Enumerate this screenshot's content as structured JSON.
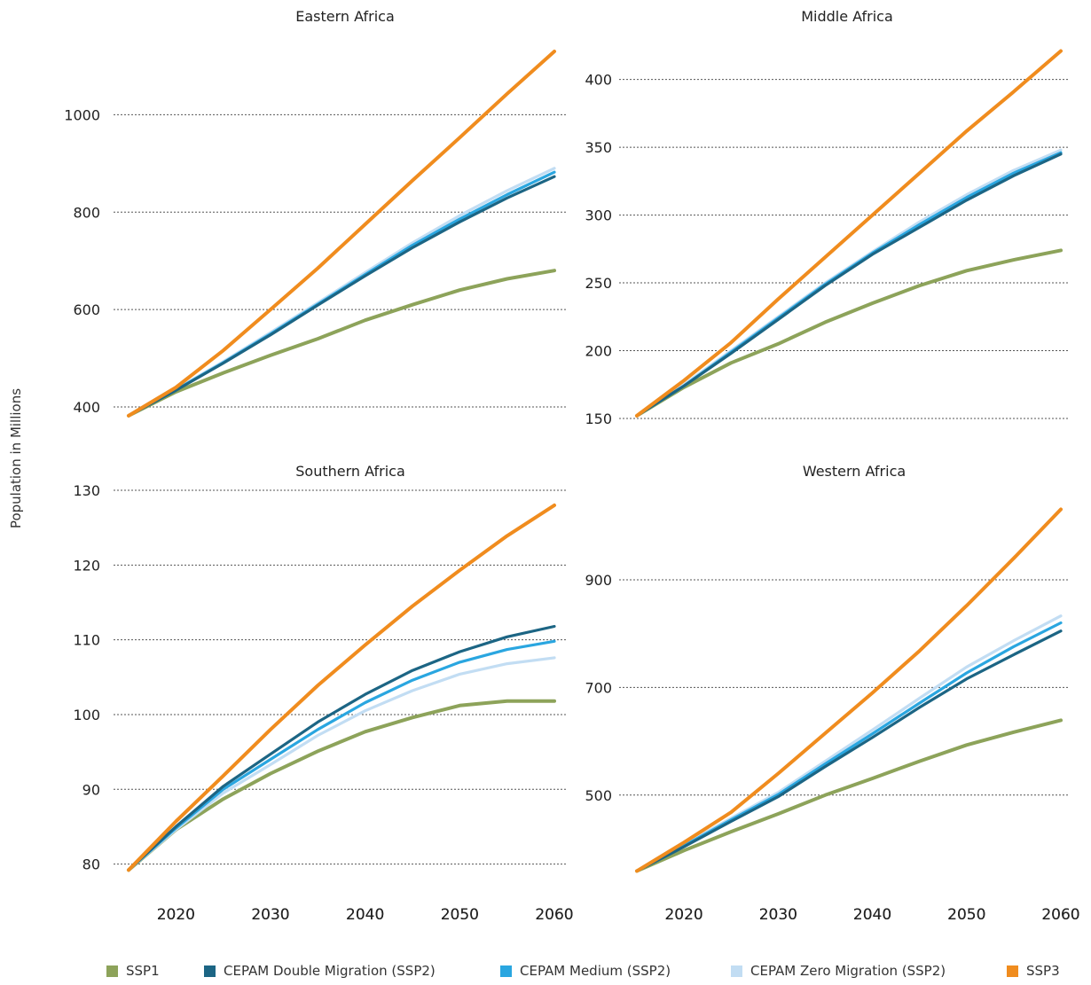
{
  "ylabel": "Population in Millions",
  "legend": [
    {
      "label": "SSP1",
      "color": "#8da35a"
    },
    {
      "label": "CEPAM Double Migration (SSP2)",
      "color": "#1c6584"
    },
    {
      "label": "CEPAM Medium (SSP2)",
      "color": "#2aa6e0"
    },
    {
      "label": "CEPAM Zero Migration (SSP2)",
      "color": "#c2ddf3"
    },
    {
      "label": "SSP3",
      "color": "#f08c1e"
    }
  ],
  "chart_data": [
    {
      "type": "line",
      "title": "Eastern Africa",
      "x": [
        2015,
        2020,
        2025,
        2030,
        2035,
        2040,
        2045,
        2050,
        2055,
        2060
      ],
      "xticks": [
        "2020",
        "2030",
        "2040",
        "2050",
        "2060"
      ],
      "yticks": [
        "400",
        "600",
        "800",
        "1000"
      ],
      "ylim": [
        380,
        1130
      ],
      "grid": true,
      "series": [
        {
          "name": "CEPAM Zero Migration (SSP2)",
          "values": [
            382,
            436,
            493,
            553,
            614,
            676,
            737,
            793,
            844,
            890
          ]
        },
        {
          "name": "CEPAM Medium (SSP2)",
          "values": [
            382,
            435,
            491,
            550,
            611,
            672,
            732,
            786,
            836,
            882
          ]
        },
        {
          "name": "CEPAM Double Migration (SSP2)",
          "values": [
            382,
            434,
            490,
            548,
            609,
            669,
            727,
            780,
            829,
            873
          ]
        },
        {
          "name": "SSP1",
          "values": [
            382,
            431,
            470,
            506,
            540,
            578,
            610,
            640,
            663,
            680
          ]
        },
        {
          "name": "SSP3",
          "values": [
            382,
            440,
            516,
            600,
            685,
            775,
            865,
            953,
            1043,
            1130
          ]
        }
      ]
    },
    {
      "type": "line",
      "title": "Middle Africa",
      "x": [
        2015,
        2020,
        2025,
        2030,
        2035,
        2040,
        2045,
        2050,
        2055,
        2060
      ],
      "xticks": [
        "2020",
        "2030",
        "2040",
        "2050",
        "2060"
      ],
      "yticks": [
        "150",
        "200",
        "250",
        "300",
        "350",
        "400"
      ],
      "ylim": [
        150,
        422
      ],
      "grid": true,
      "series": [
        {
          "name": "CEPAM Zero Migration (SSP2)",
          "values": [
            152,
            175,
            200,
            225,
            250,
            273,
            295,
            315,
            333,
            348
          ]
        },
        {
          "name": "CEPAM Medium (SSP2)",
          "values": [
            152,
            174,
            199,
            224,
            249,
            272,
            293,
            313,
            331,
            346
          ]
        },
        {
          "name": "CEPAM Double Migration (SSP2)",
          "values": [
            152,
            174,
            198,
            223,
            248,
            271,
            291,
            311,
            329,
            345
          ]
        },
        {
          "name": "SSP1",
          "values": [
            152,
            173,
            191,
            205,
            221,
            235,
            248,
            259,
            267,
            274
          ]
        },
        {
          "name": "SSP3",
          "values": [
            152,
            178,
            206,
            238,
            269,
            300,
            331,
            362,
            391,
            421
          ]
        }
      ]
    },
    {
      "type": "line",
      "title": "Southern Africa",
      "x": [
        2015,
        2020,
        2025,
        2030,
        2035,
        2040,
        2045,
        2050,
        2055,
        2060
      ],
      "xticks": [
        "2020",
        "2030",
        "2040",
        "2050",
        "2060"
      ],
      "yticks": [
        "80",
        "90",
        "100",
        "110",
        "120",
        "130"
      ],
      "ylim": [
        79,
        130
      ],
      "grid": true,
      "series": [
        {
          "name": "CEPAM Zero Migration (SSP2)",
          "values": [
            79.2,
            84.6,
            89.5,
            93.3,
            97.2,
            100.5,
            103.2,
            105.4,
            106.8,
            107.6
          ]
        },
        {
          "name": "CEPAM Medium (SSP2)",
          "values": [
            79.2,
            84.8,
            90.0,
            94.0,
            98.0,
            101.6,
            104.6,
            107.0,
            108.7,
            109.8
          ]
        },
        {
          "name": "CEPAM Double Migration (SSP2)",
          "values": [
            79.2,
            85.0,
            90.4,
            94.7,
            99.0,
            102.7,
            105.9,
            108.4,
            110.4,
            111.8
          ]
        },
        {
          "name": "SSP1",
          "values": [
            79.2,
            84.6,
            88.7,
            92.1,
            95.1,
            97.7,
            99.6,
            101.2,
            101.8,
            101.8
          ]
        },
        {
          "name": "SSP3",
          "values": [
            79.2,
            85.7,
            91.8,
            98.0,
            103.9,
            109.3,
            114.5,
            119.3,
            123.9,
            128.0
          ]
        }
      ]
    },
    {
      "type": "line",
      "title": "Western Africa",
      "x": [
        2015,
        2020,
        2025,
        2030,
        2035,
        2040,
        2045,
        2050,
        2055,
        2060
      ],
      "xticks": [
        "2020",
        "2030",
        "2040",
        "2050",
        "2060"
      ],
      "yticks": [
        "500",
        "700",
        "900"
      ],
      "ylim": [
        358,
        1040
      ],
      "grid": true,
      "series": [
        {
          "name": "CEPAM Zero Migration (SSP2)",
          "values": [
            359,
            408,
            457,
            505,
            563,
            621,
            680,
            738,
            787,
            833
          ]
        },
        {
          "name": "CEPAM Medium (SSP2)",
          "values": [
            359,
            406,
            454,
            501,
            558,
            614,
            671,
            727,
            776,
            820
          ]
        },
        {
          "name": "CEPAM Double Migration (SSP2)",
          "values": [
            359,
            404,
            451,
            497,
            553,
            607,
            663,
            716,
            761,
            805
          ]
        },
        {
          "name": "SSP1",
          "values": [
            359,
            397,
            432,
            465,
            500,
            531,
            563,
            593,
            617,
            639
          ]
        },
        {
          "name": "SSP3",
          "values": [
            359,
            412,
            468,
            540,
            615,
            690,
            768,
            852,
            940,
            1031
          ]
        }
      ]
    }
  ]
}
